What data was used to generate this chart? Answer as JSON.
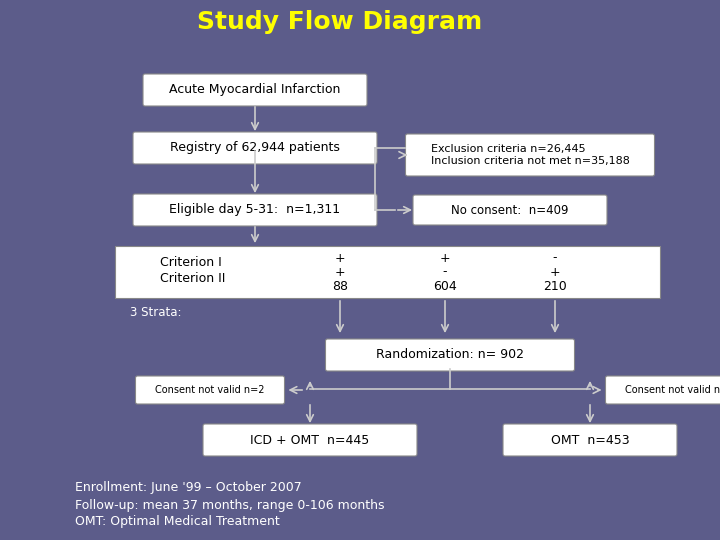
{
  "title": "Study Flow Diagram",
  "title_color": "#FFFF00",
  "bg_color": "#5C5C8A",
  "box_fill": "white",
  "box_edge": "#888888",
  "text_color": "black",
  "arrow_color": "#CCCCCC",
  "font_family": "DejaVu Sans",
  "footer_lines": [
    "Enrollment: June '99 – October 2007",
    "Follow-up: mean 37 months, range 0-106 months",
    "OMT: Optimal Medical Treatment"
  ]
}
